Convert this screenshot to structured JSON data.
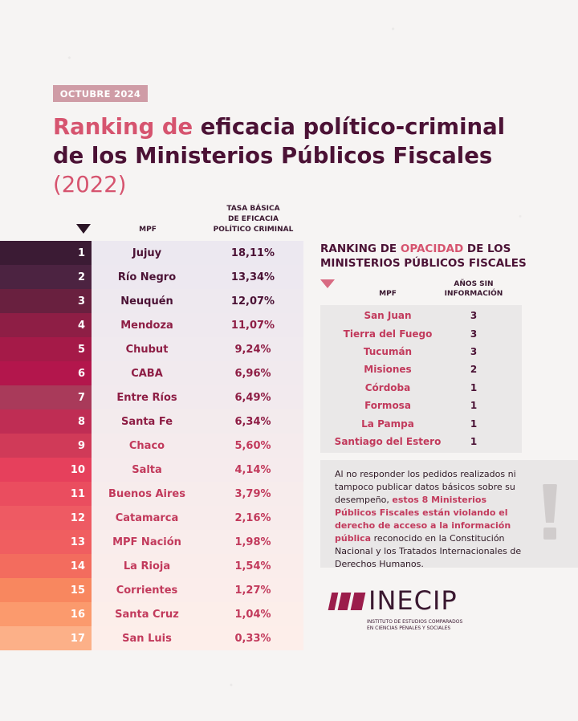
{
  "date_badge": "OCTUBRE 2024",
  "title": {
    "line1_a": "Ranking de ",
    "line1_b": "eficacia político-criminal",
    "line2": "de los Ministerios Públicos Fiscales",
    "line3": "(2022)"
  },
  "ranking": {
    "header_mpf": "MPF",
    "header_rate_l1": "TASA BÁSICA",
    "header_rate_l2": "DE EFICACIA",
    "header_rate_l3": "POLÍTICO CRIMINAL",
    "rows": [
      {
        "rank": "1",
        "name": "Jujuy",
        "value": "18,11%",
        "color": "#3b1b34"
      },
      {
        "rank": "2",
        "name": "Río Negro",
        "value": "13,34%",
        "color": "#4c2341"
      },
      {
        "rank": "3",
        "name": "Neuquén",
        "value": "12,07%",
        "color": "#69203f"
      },
      {
        "rank": "4",
        "name": "Mendoza",
        "value": "11,07%",
        "color": "#8e1e45"
      },
      {
        "rank": "5",
        "name": "Chubut",
        "value": "9,24%",
        "color": "#a51a48"
      },
      {
        "rank": "6",
        "name": "CABA",
        "value": "6,96%",
        "color": "#b3164c"
      },
      {
        "rank": "7",
        "name": "Entre Ríos",
        "value": "6,49%",
        "color": "#a93a5a"
      },
      {
        "rank": "8",
        "name": "Santa Fe",
        "value": "6,34%",
        "color": "#bf2d54"
      },
      {
        "rank": "9",
        "name": "Chaco",
        "value": "5,60%",
        "color": "#d03a58"
      },
      {
        "rank": "10",
        "name": "Salta",
        "value": "4,14%",
        "color": "#e6405c"
      },
      {
        "rank": "11",
        "name": "Buenos Aires",
        "value": "3,79%",
        "color": "#ea4d5f"
      },
      {
        "rank": "12",
        "name": "Catamarca",
        "value": "2,16%",
        "color": "#ee5a63"
      },
      {
        "rank": "13",
        "name": "MPF Nación",
        "value": "1,98%",
        "color": "#f05e60"
      },
      {
        "rank": "14",
        "name": "La Rioja",
        "value": "1,54%",
        "color": "#f36c5e"
      },
      {
        "rank": "15",
        "name": "Corrientes",
        "value": "1,27%",
        "color": "#f8875f"
      },
      {
        "rank": "16",
        "name": "Santa Cruz",
        "value": "1,04%",
        "color": "#fb9a6d"
      },
      {
        "rank": "17",
        "name": "San Luis",
        "value": "0,33%",
        "color": "#fcb088"
      }
    ]
  },
  "opacity": {
    "title_a": "RANKING DE ",
    "title_b": "OPACIDAD",
    "title_c": " DE LOS",
    "title_line2": "MINISTERIOS PÚBLICOS FISCALES",
    "header_mpf": "MPF",
    "header_years_l1": "AÑOS SIN",
    "header_years_l2": "INFORMACIÓN",
    "rows": [
      {
        "name": "San Juan",
        "years": "3"
      },
      {
        "name": "Tierra del Fuego",
        "years": "3"
      },
      {
        "name": "Tucumán",
        "years": "3"
      },
      {
        "name": "Misiones",
        "years": "2"
      },
      {
        "name": "Córdoba",
        "years": "1"
      },
      {
        "name": "Formosa",
        "years": "1"
      },
      {
        "name": "La Pampa",
        "years": "1"
      },
      {
        "name": "Santiago del Estero",
        "years": "1"
      }
    ]
  },
  "note": {
    "part1": "Al no responder los pedidos realizados ni tampoco publicar datos básicos sobre su desempeño, ",
    "highlight": "estos 8 Ministerios Públicos Fiscales están violando el derecho de acceso a la información pública",
    "part2": " reconocido en la Constitución Nacional y los Tratados Internacionales de Derechos Humanos."
  },
  "logo": {
    "name": "INECIP",
    "sub_l1": "INSTITUTO DE ESTUDIOS COMPARADOS",
    "sub_l2": "EN CIENCIAS PENALES Y SOCIALES"
  }
}
